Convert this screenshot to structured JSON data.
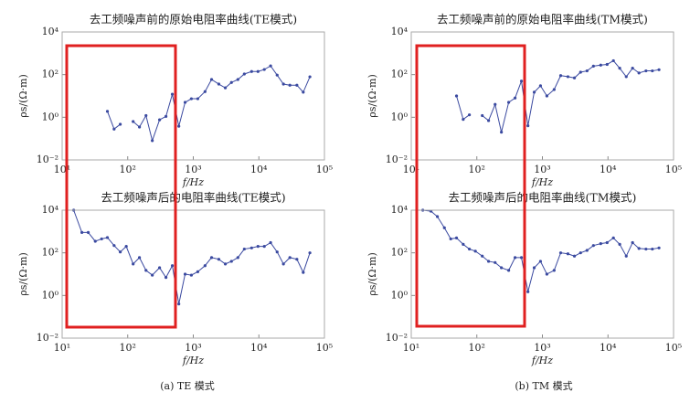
{
  "chart_data": [
    {
      "type": "line",
      "title": "去工频噪声前的原始电阻率曲线(TE模式)",
      "xlabel": "f/Hz",
      "ylabel": "ρs/(Ω·m)",
      "xscale": "log",
      "yscale": "log",
      "x": [
        15,
        20,
        25,
        32,
        40,
        49,
        62,
        77,
        95,
        121,
        151,
        190,
        237,
        306,
        383,
        479,
        602,
        750,
        935,
        1170,
        1510,
        1900,
        2450,
        3080,
        3820,
        4790,
        6000,
        7750,
        9700,
        12100,
        15100,
        19000,
        23700,
        29700,
        38000,
        47500,
        60000
      ],
      "series": [
        {
          "color": "#3b4aa0",
          "values": [
            null,
            null,
            null,
            null,
            null,
            1.9,
            0.28,
            0.47,
            null,
            0.63,
            0.35,
            1.2,
            0.08,
            0.76,
            1.1,
            12,
            0.38,
            5,
            7.4,
            7.4,
            16,
            59,
            36,
            24,
            43,
            59,
            107,
            140,
            140,
            174,
            257,
            95,
            36,
            32,
            32,
            15,
            79
          ]
        }
      ],
      "xlim": [
        10,
        100000
      ],
      "ylim": [
        0.01,
        10000
      ],
      "xticks": [
        {
          "value": 10,
          "label": "10¹"
        },
        {
          "value": 100,
          "label": "10²"
        },
        {
          "value": 1000,
          "label": "10³"
        },
        {
          "value": 10000,
          "label": "10⁴"
        },
        {
          "value": 100000,
          "label": "10⁵"
        }
      ],
      "yticks": [
        {
          "value": 0.01,
          "label": "10⁻²"
        },
        {
          "value": 1,
          "label": "10⁰"
        },
        {
          "value": 100,
          "label": "10²"
        },
        {
          "value": 10000,
          "label": "10⁴"
        }
      ]
    },
    {
      "type": "line",
      "title": "去工频噪声前的原始电阻率曲线(TM模式)",
      "xlabel": "f/Hz",
      "ylabel": "ρs/(Ω·m)",
      "xscale": "log",
      "yscale": "log",
      "x": [
        15,
        20,
        25,
        32,
        40,
        49,
        62,
        77,
        95,
        121,
        151,
        190,
        237,
        306,
        383,
        479,
        602,
        750,
        935,
        1170,
        1510,
        1900,
        2450,
        3080,
        3820,
        4790,
        6000,
        7750,
        9700,
        12100,
        15100,
        19000,
        23700,
        29700,
        38000,
        47500,
        60000
      ],
      "series": [
        {
          "color": "#3b4aa0",
          "values": [
            null,
            null,
            null,
            null,
            null,
            10,
            0.8,
            1.3,
            null,
            1.2,
            0.7,
            4,
            0.2,
            5,
            8,
            50,
            0.4,
            15,
            30,
            10,
            20,
            90,
            80,
            70,
            130,
            150,
            250,
            280,
            300,
            450,
            200,
            80,
            200,
            120,
            150,
            150,
            170
          ]
        }
      ],
      "xlim": [
        10,
        100000
      ],
      "ylim": [
        0.01,
        10000
      ],
      "xticks": [
        {
          "value": 10,
          "label": "10¹"
        },
        {
          "value": 100,
          "label": "10²"
        },
        {
          "value": 1000,
          "label": "10³"
        },
        {
          "value": 10000,
          "label": "10⁴"
        },
        {
          "value": 100000,
          "label": "10⁵"
        }
      ],
      "yticks": [
        {
          "value": 0.01,
          "label": "10⁻²"
        },
        {
          "value": 1,
          "label": "10⁰"
        },
        {
          "value": 100,
          "label": "10²"
        },
        {
          "value": 10000,
          "label": "10⁴"
        }
      ]
    },
    {
      "type": "line",
      "title": "去工频噪声后的电阻率曲线(TE模式)",
      "xlabel": "f/Hz",
      "ylabel": "ρs/(Ω·m)",
      "xscale": "log",
      "yscale": "log",
      "x": [
        15,
        20,
        25,
        32,
        40,
        49,
        62,
        77,
        95,
        121,
        151,
        190,
        237,
        306,
        383,
        479,
        602,
        750,
        935,
        1170,
        1510,
        1900,
        2450,
        3080,
        3820,
        4790,
        6000,
        7750,
        9700,
        12100,
        15100,
        19000,
        23700,
        29700,
        38000,
        47500,
        60000
      ],
      "series": [
        {
          "color": "#3b4aa0",
          "values": [
            10000,
            900,
            900,
            350,
            450,
            520,
            220,
            110,
            200,
            30,
            60,
            15,
            9,
            20,
            7,
            25,
            0.4,
            10,
            9,
            13,
            25,
            60,
            50,
            30,
            40,
            60,
            150,
            170,
            200,
            200,
            300,
            110,
            30,
            60,
            50,
            12,
            100
          ]
        }
      ],
      "xlim": [
        10,
        100000
      ],
      "ylim": [
        0.01,
        10000
      ],
      "xticks": [
        {
          "value": 10,
          "label": "10¹"
        },
        {
          "value": 100,
          "label": "10²"
        },
        {
          "value": 1000,
          "label": "10³"
        },
        {
          "value": 10000,
          "label": "10⁴"
        },
        {
          "value": 100000,
          "label": "10⁵"
        }
      ],
      "yticks": [
        {
          "value": 0.01,
          "label": "10⁻²"
        },
        {
          "value": 1,
          "label": "10⁰"
        },
        {
          "value": 100,
          "label": "10²"
        },
        {
          "value": 10000,
          "label": "10⁴"
        }
      ]
    },
    {
      "type": "line",
      "title": "去工频噪声后的电阻率曲线(TM模式)",
      "xlabel": "f/Hz",
      "ylabel": "ρs/(Ω·m)",
      "xscale": "log",
      "yscale": "log",
      "x": [
        15,
        20,
        25,
        32,
        40,
        49,
        62,
        77,
        95,
        121,
        151,
        190,
        237,
        306,
        383,
        479,
        602,
        750,
        935,
        1170,
        1510,
        1900,
        2450,
        3080,
        3820,
        4790,
        6000,
        7750,
        9700,
        12100,
        15100,
        19000,
        23700,
        29700,
        38000,
        47500,
        60000
      ],
      "series": [
        {
          "color": "#3b4aa0",
          "values": [
            10000,
            9000,
            5000,
            1500,
            450,
            500,
            250,
            150,
            120,
            70,
            40,
            35,
            20,
            15,
            60,
            60,
            1.5,
            20,
            40,
            10,
            15,
            100,
            90,
            70,
            100,
            130,
            220,
            270,
            300,
            500,
            250,
            70,
            300,
            160,
            150,
            150,
            170
          ]
        }
      ],
      "xlim": [
        10,
        100000
      ],
      "ylim": [
        0.01,
        10000
      ],
      "xticks": [
        {
          "value": 10,
          "label": "10¹"
        },
        {
          "value": 100,
          "label": "10²"
        },
        {
          "value": 1000,
          "label": "10³"
        },
        {
          "value": 10000,
          "label": "10⁴"
        },
        {
          "value": 100000,
          "label": "10⁵"
        }
      ],
      "yticks": [
        {
          "value": 0.01,
          "label": "10⁻²"
        },
        {
          "value": 1,
          "label": "10⁰"
        },
        {
          "value": 100,
          "label": "10²"
        },
        {
          "value": 10000,
          "label": "10⁴"
        }
      ]
    }
  ],
  "captions": [
    "(a) TE 模式",
    "(b) TM 模式"
  ]
}
